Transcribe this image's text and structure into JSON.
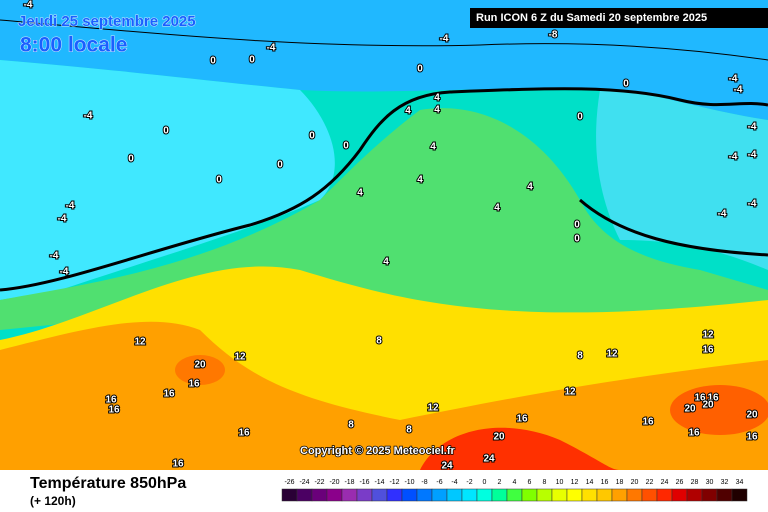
{
  "header": {
    "date": "Jeudi 25 septembre 2025",
    "time": "8:00 locale",
    "run": "Run ICON 6 Z du Samedi 20 septembre 2025"
  },
  "copyright": "Copyright © 2025 Meteociel.fr",
  "legend": {
    "title": "Température 850hPa",
    "subtitle": "(+ 120h)",
    "scale": [
      -26,
      -24,
      -22,
      -20,
      -18,
      -16,
      -14,
      -12,
      -10,
      -8,
      -6,
      -4,
      -2,
      0,
      2,
      4,
      6,
      8,
      10,
      12,
      14,
      16,
      18,
      20,
      22,
      24,
      26,
      28,
      30,
      32,
      34
    ],
    "colors": [
      "#2a0036",
      "#4b0063",
      "#6a007a",
      "#8b008b",
      "#9a2cb0",
      "#7a3cc8",
      "#5050dc",
      "#3030ff",
      "#0050ff",
      "#0078ff",
      "#00a0ff",
      "#00c8ff",
      "#00e6ff",
      "#00ffe0",
      "#00ff9a",
      "#40ff40",
      "#80ff00",
      "#b8ff00",
      "#e8ff00",
      "#ffff00",
      "#ffe000",
      "#ffc800",
      "#ffa000",
      "#ff7800",
      "#ff5000",
      "#ff2800",
      "#e00000",
      "#b00000",
      "#800000",
      "#500000",
      "#200000"
    ]
  },
  "map": {
    "labels": [
      -4,
      -4,
      -8,
      -4,
      0,
      0,
      0,
      0,
      -4,
      -4,
      -4,
      0,
      0,
      0,
      4,
      4,
      4,
      0,
      -4,
      -4,
      -4,
      0,
      0,
      0,
      4,
      4,
      4,
      4,
      4,
      -4,
      -4,
      -4,
      -4,
      0,
      -4,
      -4,
      4,
      0,
      8,
      12,
      12,
      20,
      16,
      16,
      16,
      16,
      16,
      16,
      12,
      16,
      12,
      8,
      12,
      12,
      16,
      8,
      8,
      20,
      24,
      24,
      20,
      16,
      16,
      20,
      20,
      16,
      16,
      16
    ]
  }
}
